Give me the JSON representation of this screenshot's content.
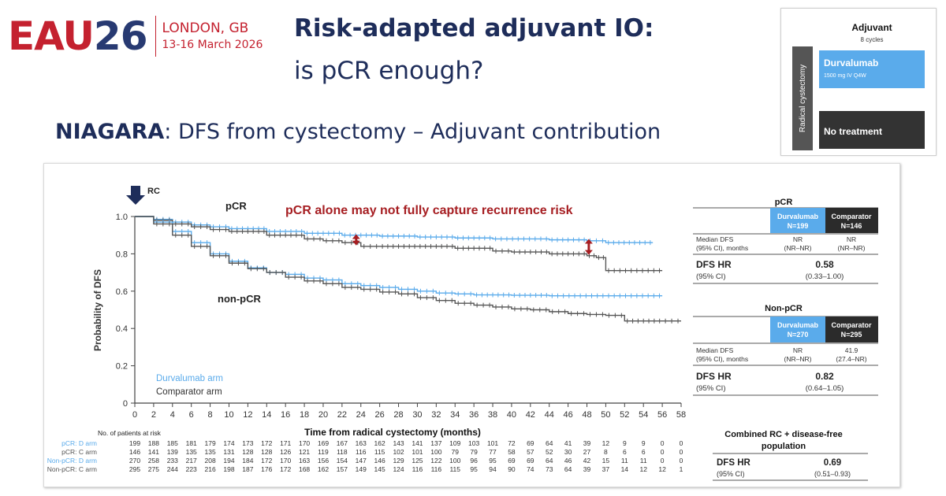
{
  "logo": {
    "eau": "EAU",
    "year": "26",
    "city": "LONDON, GB",
    "dates": "13-16 March 2026"
  },
  "header": {
    "title_line1": "Risk-adapted adjuvant IO:",
    "title_line2": "is pCR enough?"
  },
  "subtitle": {
    "bold": "NIAGARA",
    "rest": ": DFS from cystectomy – Adjuvant contribution"
  },
  "inset": {
    "title": "Adjuvant",
    "subtitle": "8 cycles",
    "side_label": "Radical cystectomy",
    "box1_title": "Durvalumab",
    "box1_sub": "1500 mg IV Q4W",
    "box2_title": "No treatment",
    "colors": {
      "durva": "#5aabeb",
      "none": "#333333",
      "side": "#555555"
    }
  },
  "chart_data": {
    "type": "line",
    "ylabel": "Probability of DFS",
    "xlabel": "Time from radical cystectomy (months)",
    "rc_label": "RC",
    "annotation": "pCR alone may not fully capture recurrence risk",
    "group_labels": [
      "pCR",
      "non-pCR"
    ],
    "legend": [
      "Durvalumab arm",
      "Comparator arm"
    ],
    "xlim": [
      0,
      58
    ],
    "ylim": [
      0,
      1.0
    ],
    "xticks": [
      "0",
      "2",
      "4",
      "6",
      "8",
      "10",
      "12",
      "14",
      "16",
      "18",
      "20",
      "22",
      "24",
      "26",
      "28",
      "30",
      "32",
      "34",
      "36",
      "38",
      "40",
      "42",
      "44",
      "46",
      "48",
      "50",
      "52",
      "54",
      "56",
      "58"
    ],
    "yticks": [
      "0",
      "0.2",
      "0.4",
      "0.6",
      "0.8",
      "1.0"
    ],
    "colors": {
      "durva": "#5aabeb",
      "comp": "#555555",
      "annot": "#a61e22"
    },
    "series": [
      {
        "name": "pCR: D arm",
        "color": "durva",
        "x": [
          0,
          2,
          4,
          6,
          8,
          10,
          14,
          18,
          22,
          26,
          30,
          34,
          38,
          44,
          48,
          50,
          55
        ],
        "y": [
          1.0,
          0.985,
          0.97,
          0.955,
          0.945,
          0.935,
          0.92,
          0.91,
          0.9,
          0.895,
          0.89,
          0.885,
          0.88,
          0.875,
          0.87,
          0.86,
          0.86
        ]
      },
      {
        "name": "pCR: C arm",
        "color": "comp",
        "x": [
          0,
          2,
          4,
          6,
          8,
          10,
          14,
          18,
          20,
          22,
          24,
          26,
          30,
          34,
          38,
          40,
          44,
          48,
          49,
          50,
          56
        ],
        "y": [
          1.0,
          0.98,
          0.96,
          0.945,
          0.93,
          0.92,
          0.9,
          0.88,
          0.87,
          0.86,
          0.84,
          0.84,
          0.84,
          0.83,
          0.815,
          0.81,
          0.8,
          0.79,
          0.78,
          0.71,
          0.71
        ]
      },
      {
        "name": "Non-pCR: D arm",
        "color": "durva",
        "x": [
          0,
          2,
          4,
          6,
          8,
          10,
          12,
          14,
          16,
          18,
          20,
          22,
          24,
          26,
          28,
          30,
          32,
          34,
          36,
          40,
          44,
          50,
          56
        ],
        "y": [
          1.0,
          0.97,
          0.92,
          0.86,
          0.8,
          0.76,
          0.725,
          0.7,
          0.69,
          0.67,
          0.66,
          0.64,
          0.63,
          0.62,
          0.61,
          0.6,
          0.59,
          0.585,
          0.58,
          0.578,
          0.575,
          0.575,
          0.575
        ]
      },
      {
        "name": "Non-pCR: C arm",
        "color": "comp",
        "x": [
          0,
          2,
          4,
          6,
          8,
          10,
          12,
          14,
          16,
          18,
          20,
          22,
          24,
          26,
          28,
          30,
          32,
          34,
          36,
          38,
          40,
          42,
          44,
          46,
          48,
          50,
          52,
          56,
          58
        ],
        "y": [
          1.0,
          0.96,
          0.9,
          0.84,
          0.79,
          0.75,
          0.72,
          0.7,
          0.675,
          0.655,
          0.64,
          0.62,
          0.61,
          0.595,
          0.585,
          0.565,
          0.55,
          0.535,
          0.525,
          0.515,
          0.505,
          0.5,
          0.49,
          0.48,
          0.475,
          0.47,
          0.44,
          0.44,
          0.44
        ]
      }
    ],
    "risk_arrows": [
      {
        "x": 23.5,
        "y_top": 0.905,
        "y_bottom": 0.845
      },
      {
        "x": 48.2,
        "y_top": 0.88,
        "y_bottom": 0.795
      }
    ],
    "at_risk": {
      "title": "No. of patients at risk",
      "rows": [
        {
          "label": "pCR: D arm",
          "color": "durva",
          "values": [
            "199",
            "188",
            "185",
            "181",
            "179",
            "174",
            "173",
            "172",
            "171",
            "170",
            "169",
            "167",
            "163",
            "162",
            "143",
            "141",
            "137",
            "109",
            "103",
            "101",
            "72",
            "69",
            "64",
            "41",
            "39",
            "12",
            "9",
            "9",
            "0",
            "0"
          ]
        },
        {
          "label": "pCR: C arm",
          "color": "comp",
          "values": [
            "146",
            "141",
            "139",
            "135",
            "135",
            "131",
            "128",
            "128",
            "126",
            "121",
            "119",
            "118",
            "116",
            "115",
            "102",
            "101",
            "100",
            "79",
            "79",
            "77",
            "58",
            "57",
            "52",
            "30",
            "27",
            "8",
            "6",
            "6",
            "0",
            "0"
          ]
        },
        {
          "label": "Non-pCR: D arm",
          "color": "durva",
          "values": [
            "270",
            "258",
            "233",
            "217",
            "208",
            "194",
            "184",
            "172",
            "170",
            "163",
            "156",
            "154",
            "147",
            "146",
            "129",
            "125",
            "122",
            "100",
            "96",
            "95",
            "69",
            "69",
            "64",
            "46",
            "42",
            "15",
            "11",
            "11",
            "0",
            "0"
          ]
        },
        {
          "label": "Non-pCR: C arm",
          "color": "comp",
          "values": [
            "295",
            "275",
            "244",
            "223",
            "216",
            "198",
            "187",
            "176",
            "172",
            "168",
            "162",
            "157",
            "149",
            "145",
            "124",
            "116",
            "116",
            "115",
            "95",
            "94",
            "90",
            "74",
            "73",
            "64",
            "39",
            "37",
            "14",
            "12",
            "12",
            "1"
          ]
        }
      ]
    }
  },
  "tables": {
    "pcr": {
      "title": "pCR",
      "head_durva": "Durvalumab",
      "n_durva": "N=199",
      "head_comp": "Comparator",
      "n_comp": "N=146",
      "median_label1": "Median DFS",
      "median_label2": "(95% CI), months",
      "median_durva1": "NR",
      "median_durva2": "(NR–NR)",
      "median_comp1": "NR",
      "median_comp2": "(NR–NR)",
      "hr_label": "DFS HR",
      "ci_label": "(95% CI)",
      "hr": "0.58",
      "hr_ci": "(0.33–1.00)"
    },
    "nonpcr": {
      "title": "Non-pCR",
      "head_durva": "Durvalumab",
      "n_durva": "N=270",
      "head_comp": "Comparator",
      "n_comp": "N=295",
      "median_label1": "Median DFS",
      "median_label2": "(95% CI), months",
      "median_durva1": "NR",
      "median_durva2": "(NR–NR)",
      "median_comp1": "41.9",
      "median_comp2": "(27.4–NR)",
      "hr_label": "DFS HR",
      "ci_label": "(95% CI)",
      "hr": "0.82",
      "hr_ci": "(0.64–1.05)"
    },
    "combined": {
      "title1": "Combined RC + disease-free",
      "title2": "population",
      "hr_label": "DFS HR",
      "ci_label": "(95% CI)",
      "hr": "0.69",
      "hr_ci": "(0.51–0.93)"
    },
    "colors": {
      "durva_head": "#5aabeb",
      "comp_head": "#2b2b2b"
    }
  }
}
